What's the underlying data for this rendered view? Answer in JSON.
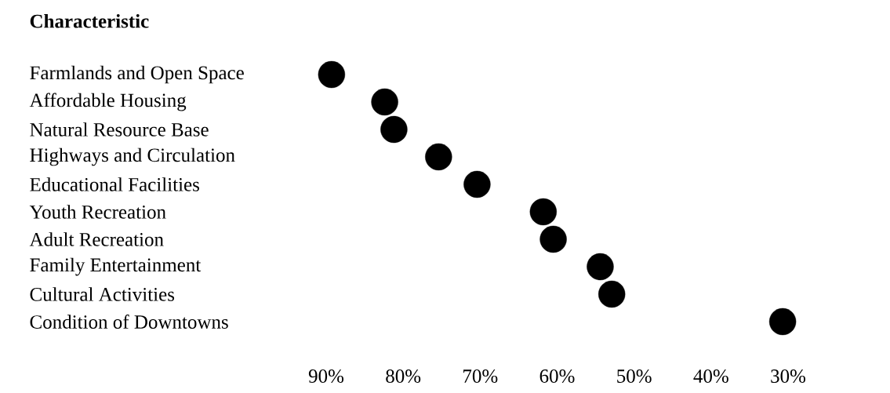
{
  "chart_data": {
    "type": "scatter",
    "orientation": "horizontal",
    "ylabel": "Characteristic",
    "categories": [
      "Farmlands and Open Space",
      "Affordable Housing",
      "Natural Resource Base",
      "Highways and Circulation",
      "Educational Facilities",
      "Youth Recreation",
      "Adult Recreation",
      "Family Entertainment",
      "Cultural Activities",
      "Condition of Downtowns"
    ],
    "values": [
      89.3,
      82.4,
      81.2,
      75.4,
      70.4,
      61.8,
      60.5,
      54.4,
      52.9,
      30.7
    ],
    "color": "#000000",
    "marker": "circle",
    "xlim": [
      90,
      30
    ],
    "xticks": [
      {
        "value": 90,
        "label": "90%"
      },
      {
        "value": 80,
        "label": "80%"
      },
      {
        "value": 70,
        "label": "70%"
      },
      {
        "value": 60,
        "label": "60%"
      },
      {
        "value": 50,
        "label": "50%"
      },
      {
        "value": 40,
        "label": "40%"
      },
      {
        "value": 30,
        "label": "30%"
      }
    ]
  }
}
